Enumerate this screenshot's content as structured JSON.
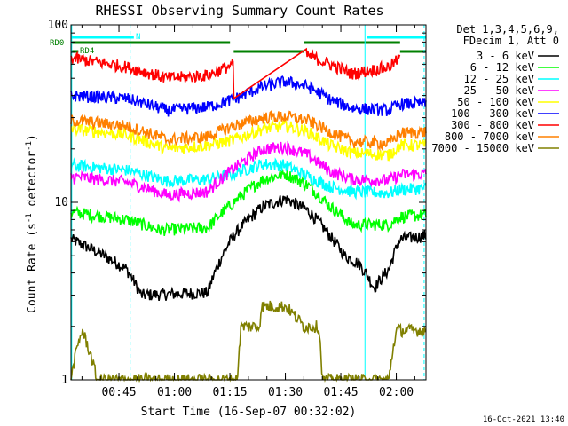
{
  "chart_data": {
    "type": "line",
    "title": "RHESSI Observing Summary Count Rates",
    "xlabel": "Start Time (16-Sep-07 00:32:02)",
    "ylabel_main": "Count Rate (s",
    "ylabel_sup1": "-1",
    "ylabel_mid": " detector",
    "ylabel_sup2": "-1",
    "ylabel_end": ")",
    "x_unit": "minutes after 00:32:02",
    "xlim": [
      0,
      96
    ],
    "ylim": [
      1,
      100
    ],
    "yscale": "log",
    "y_ticks": [
      "1",
      "10",
      "100"
    ],
    "x_ticks": [
      {
        "label": "00:45",
        "value": 12.97
      },
      {
        "label": "01:00",
        "value": 27.97
      },
      {
        "label": "01:15",
        "value": 42.97
      },
      {
        "label": "01:30",
        "value": 57.97
      },
      {
        "label": "01:45",
        "value": 72.97
      },
      {
        "label": "02:00",
        "value": 87.97
      }
    ],
    "legend_header": [
      "Det 1,3,4,5,6,9,",
      "FDecim 1, Att 0"
    ],
    "legend_placement": "right",
    "series": [
      {
        "name": "3 - 6 keV",
        "color": "#000000",
        "values": [
          [
            0,
            6.2
          ],
          [
            15,
            4.2
          ],
          [
            19,
            3.0
          ],
          [
            37,
            3.1
          ],
          [
            44,
            6.5
          ],
          [
            52,
            9.5
          ],
          [
            58,
            10.5
          ],
          [
            64,
            9.0
          ],
          [
            70,
            6.5
          ],
          [
            74,
            5.0
          ],
          [
            78,
            4.5
          ],
          [
            82,
            3.3
          ],
          [
            86,
            4.2
          ],
          [
            89,
            6.2
          ],
          [
            96,
            6.5
          ]
        ]
      },
      {
        "name": "6 - 12 keV",
        "color": "#00ff00",
        "values": [
          [
            0,
            8.8
          ],
          [
            15,
            8.0
          ],
          [
            24,
            7.0
          ],
          [
            37,
            7.2
          ],
          [
            44,
            10.0
          ],
          [
            52,
            13.5
          ],
          [
            58,
            14.5
          ],
          [
            64,
            12.5
          ],
          [
            70,
            9.5
          ],
          [
            76,
            7.5
          ],
          [
            86,
            7.5
          ],
          [
            89,
            8.3
          ],
          [
            96,
            8.5
          ]
        ]
      },
      {
        "name": "12 - 25 keV",
        "color": "#00ffff",
        "values": [
          [
            0,
            16.2
          ],
          [
            15,
            15.2
          ],
          [
            26,
            13.2
          ],
          [
            37,
            13.5
          ],
          [
            44,
            14.5
          ],
          [
            52,
            16.5
          ],
          [
            58,
            16.2
          ],
          [
            64,
            14.0
          ],
          [
            70,
            12.3
          ],
          [
            76,
            11.5
          ],
          [
            86,
            11.3
          ],
          [
            89,
            11.8
          ],
          [
            96,
            12.0
          ]
        ]
      },
      {
        "name": "25 - 50 keV",
        "color": "#ff00ff",
        "values": [
          [
            0,
            14.0
          ],
          [
            15,
            13.0
          ],
          [
            26,
            11.0
          ],
          [
            37,
            11.5
          ],
          [
            44,
            15.5
          ],
          [
            52,
            20.0
          ],
          [
            58,
            20.5
          ],
          [
            64,
            18.5
          ],
          [
            70,
            15.0
          ],
          [
            76,
            13.5
          ],
          [
            86,
            13.3
          ],
          [
            89,
            14.3
          ],
          [
            96,
            14.5
          ]
        ]
      },
      {
        "name": "50 - 100 keV",
        "color": "#ffff00",
        "values": [
          [
            0,
            26.0
          ],
          [
            15,
            24.0
          ],
          [
            26,
            20.0
          ],
          [
            37,
            21.0
          ],
          [
            44,
            22.5
          ],
          [
            52,
            26.0
          ],
          [
            58,
            27.0
          ],
          [
            64,
            25.0
          ],
          [
            70,
            21.0
          ],
          [
            76,
            19.0
          ],
          [
            86,
            18.5
          ],
          [
            89,
            21.0
          ],
          [
            96,
            21.0
          ]
        ]
      },
      {
        "name": "100 - 300 keV",
        "color": "#0000ff",
        "values": [
          [
            0,
            40.0
          ],
          [
            15,
            38.5
          ],
          [
            26,
            33.0
          ],
          [
            37,
            34.5
          ],
          [
            44,
            38.0
          ],
          [
            52,
            45.0
          ],
          [
            58,
            48.0
          ],
          [
            64,
            45.0
          ],
          [
            70,
            38.0
          ],
          [
            76,
            34.0
          ],
          [
            86,
            33.0
          ],
          [
            89,
            36.0
          ],
          [
            96,
            36.0
          ]
        ]
      },
      {
        "name": "300 - 800 keV",
        "color": "#ff0000",
        "values": [
          [
            0,
            65.0
          ],
          [
            15,
            58.0
          ],
          [
            26,
            50.0
          ],
          [
            37,
            52.0
          ],
          [
            44,
            60.0
          ],
          [
            44.1,
            0
          ],
          [
            63.5,
            0
          ],
          [
            63.6,
            68.0
          ],
          [
            70,
            60.0
          ],
          [
            76,
            53.0
          ],
          [
            86,
            58.0
          ],
          [
            89,
            65.0
          ],
          [
            89.1,
            0
          ]
        ]
      },
      {
        "name": "800 - 7000 keV",
        "color": "#ff8000",
        "values": [
          [
            0,
            29.0
          ],
          [
            15,
            27.0
          ],
          [
            26,
            22.5
          ],
          [
            37,
            23.5
          ],
          [
            44,
            27.0
          ],
          [
            52,
            30.0
          ],
          [
            58,
            30.5
          ],
          [
            64,
            29.0
          ],
          [
            70,
            25.0
          ],
          [
            76,
            22.0
          ],
          [
            86,
            21.5
          ],
          [
            89,
            24.5
          ],
          [
            96,
            25.0
          ]
        ]
      },
      {
        "name": "7000 - 15000 keV",
        "color": "#808000",
        "values": [
          [
            0,
            1.0
          ],
          [
            3,
            1.9
          ],
          [
            7,
            1.0
          ],
          [
            45,
            1.0
          ],
          [
            46,
            2.0
          ],
          [
            51,
            2.0
          ],
          [
            51.5,
            2.6
          ],
          [
            58,
            2.6
          ],
          [
            63,
            2.0
          ],
          [
            67,
            2.0
          ],
          [
            68,
            1.0
          ],
          [
            86,
            1.0
          ],
          [
            88,
            1.9
          ],
          [
            96,
            1.9
          ]
        ]
      }
    ],
    "flags": [
      {
        "label": "N",
        "color": "#00ffff",
        "segments": [
          [
            0,
            17
          ],
          [
            80,
            96
          ]
        ]
      },
      {
        "label": "RD0",
        "color": "#008000",
        "segments": [
          [
            0,
            43
          ],
          [
            63,
            89
          ]
        ]
      },
      {
        "label": "RD4",
        "color": "#008000",
        "segments": [
          [
            0,
            2
          ],
          [
            44,
            63
          ],
          [
            89,
            96
          ]
        ]
      }
    ],
    "vlines": [
      {
        "x": 0.2,
        "style": "solid",
        "color": "#00ffff"
      },
      {
        "x": 16,
        "style": "dashed",
        "color": "#00ffff"
      },
      {
        "x": 79.5,
        "style": "solid",
        "color": "#00ffff"
      },
      {
        "x": 95.5,
        "style": "dashed",
        "color": "#00ffff"
      }
    ],
    "timestamp": "16-Oct-2021 13:40"
  }
}
